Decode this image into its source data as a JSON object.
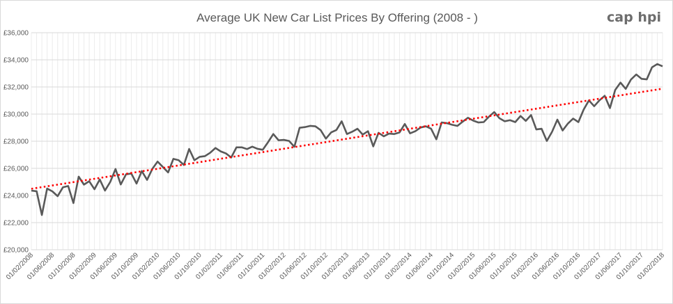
{
  "chart_data": {
    "type": "line",
    "title": "Average UK New Car List Prices By Offering (2008 - )",
    "logo": "cap hpi",
    "xlabel": "",
    "ylabel": "",
    "ylim": [
      20000,
      36000
    ],
    "ytick_step": 2000,
    "ytick_labels": [
      "£20,000",
      "£22,000",
      "£24,000",
      "£26,000",
      "£28,000",
      "£30,000",
      "£32,000",
      "£34,000",
      "£36,000"
    ],
    "x_tick_every": 4,
    "grid": {
      "horizontal": true,
      "vertical": true
    },
    "colors": {
      "series": "#595959",
      "trendline": "#ff0000",
      "grid": "#d9d9d9",
      "minor_grid": "#ececec"
    },
    "x": [
      "01/02/2008",
      "01/03/2008",
      "01/04/2008",
      "01/05/2008",
      "01/06/2008",
      "01/07/2008",
      "01/08/2008",
      "01/09/2008",
      "01/10/2008",
      "01/11/2008",
      "01/12/2008",
      "01/01/2009",
      "01/02/2009",
      "01/03/2009",
      "01/04/2009",
      "01/05/2009",
      "01/06/2009",
      "01/07/2009",
      "01/08/2009",
      "01/09/2009",
      "01/10/2009",
      "01/11/2009",
      "01/12/2009",
      "01/01/2010",
      "01/02/2010",
      "01/03/2010",
      "01/04/2010",
      "01/05/2010",
      "01/06/2010",
      "01/07/2010",
      "01/08/2010",
      "01/09/2010",
      "01/10/2010",
      "01/11/2010",
      "01/12/2010",
      "01/01/2011",
      "01/02/2011",
      "01/03/2011",
      "01/04/2011",
      "01/05/2011",
      "01/06/2011",
      "01/07/2011",
      "01/08/2011",
      "01/09/2011",
      "01/10/2011",
      "01/11/2011",
      "01/12/2011",
      "01/01/2012",
      "01/02/2012",
      "01/03/2012",
      "01/04/2012",
      "01/05/2012",
      "01/06/2012",
      "01/07/2012",
      "01/08/2012",
      "01/09/2012",
      "01/10/2012",
      "01/11/2012",
      "01/12/2012",
      "01/01/2013",
      "01/02/2013",
      "01/03/2013",
      "01/04/2013",
      "01/05/2013",
      "01/06/2013",
      "01/07/2013",
      "01/08/2013",
      "01/09/2013",
      "01/10/2013",
      "01/11/2013",
      "01/12/2013",
      "01/01/2014",
      "01/02/2014",
      "01/03/2014",
      "01/04/2014",
      "01/05/2014",
      "01/06/2014",
      "01/07/2014",
      "01/08/2014",
      "01/09/2014",
      "01/10/2014",
      "01/11/2014",
      "01/12/2014",
      "01/01/2015",
      "01/02/2015",
      "01/03/2015",
      "01/04/2015",
      "01/05/2015",
      "01/06/2015",
      "01/07/2015",
      "01/08/2015",
      "01/09/2015",
      "01/10/2015",
      "01/11/2015",
      "01/12/2015",
      "01/01/2016",
      "01/02/2016",
      "01/03/2016",
      "01/04/2016",
      "01/05/2016",
      "01/06/2016",
      "01/07/2016",
      "01/08/2016",
      "01/09/2016",
      "01/10/2016",
      "01/11/2016",
      "01/12/2016",
      "01/01/2017",
      "01/02/2017",
      "01/03/2017",
      "01/04/2017",
      "01/05/2017",
      "01/06/2017",
      "01/07/2017",
      "01/08/2017",
      "01/09/2017",
      "01/10/2017",
      "01/11/2017",
      "01/12/2017",
      "01/01/2018",
      "01/02/2018"
    ],
    "series": [
      {
        "values": [
          24360,
          24310,
          22560,
          24510,
          24300,
          23950,
          24600,
          24700,
          23440,
          25390,
          24800,
          25050,
          24460,
          25180,
          24360,
          25000,
          25950,
          24810,
          25560,
          25620,
          24880,
          25800,
          25150,
          25960,
          26500,
          26100,
          25700,
          26700,
          26600,
          26250,
          27430,
          26600,
          26850,
          26900,
          27150,
          27500,
          27250,
          27100,
          26800,
          27550,
          27550,
          27420,
          27600,
          27440,
          27370,
          27930,
          28530,
          28070,
          28100,
          28020,
          27590,
          28990,
          29040,
          29130,
          29100,
          28820,
          28190,
          28650,
          28830,
          29470,
          28530,
          28700,
          28920,
          28490,
          28740,
          27620,
          28620,
          28360,
          28560,
          28530,
          28650,
          29270,
          28580,
          28740,
          29010,
          29100,
          28920,
          28140,
          29380,
          29330,
          29210,
          29130,
          29440,
          29730,
          29520,
          29380,
          29410,
          29810,
          30150,
          29690,
          29470,
          29550,
          29410,
          29860,
          29500,
          29930,
          28870,
          28920,
          28020,
          28700,
          29590,
          28790,
          29300,
          29670,
          29410,
          30330,
          31010,
          30580,
          31010,
          31350,
          30440,
          31780,
          32320,
          31860,
          32550,
          32920,
          32600,
          32560,
          33450,
          33690,
          33520
        ]
      }
    ],
    "trendline": {
      "type": "linear",
      "style": "dotted"
    }
  }
}
